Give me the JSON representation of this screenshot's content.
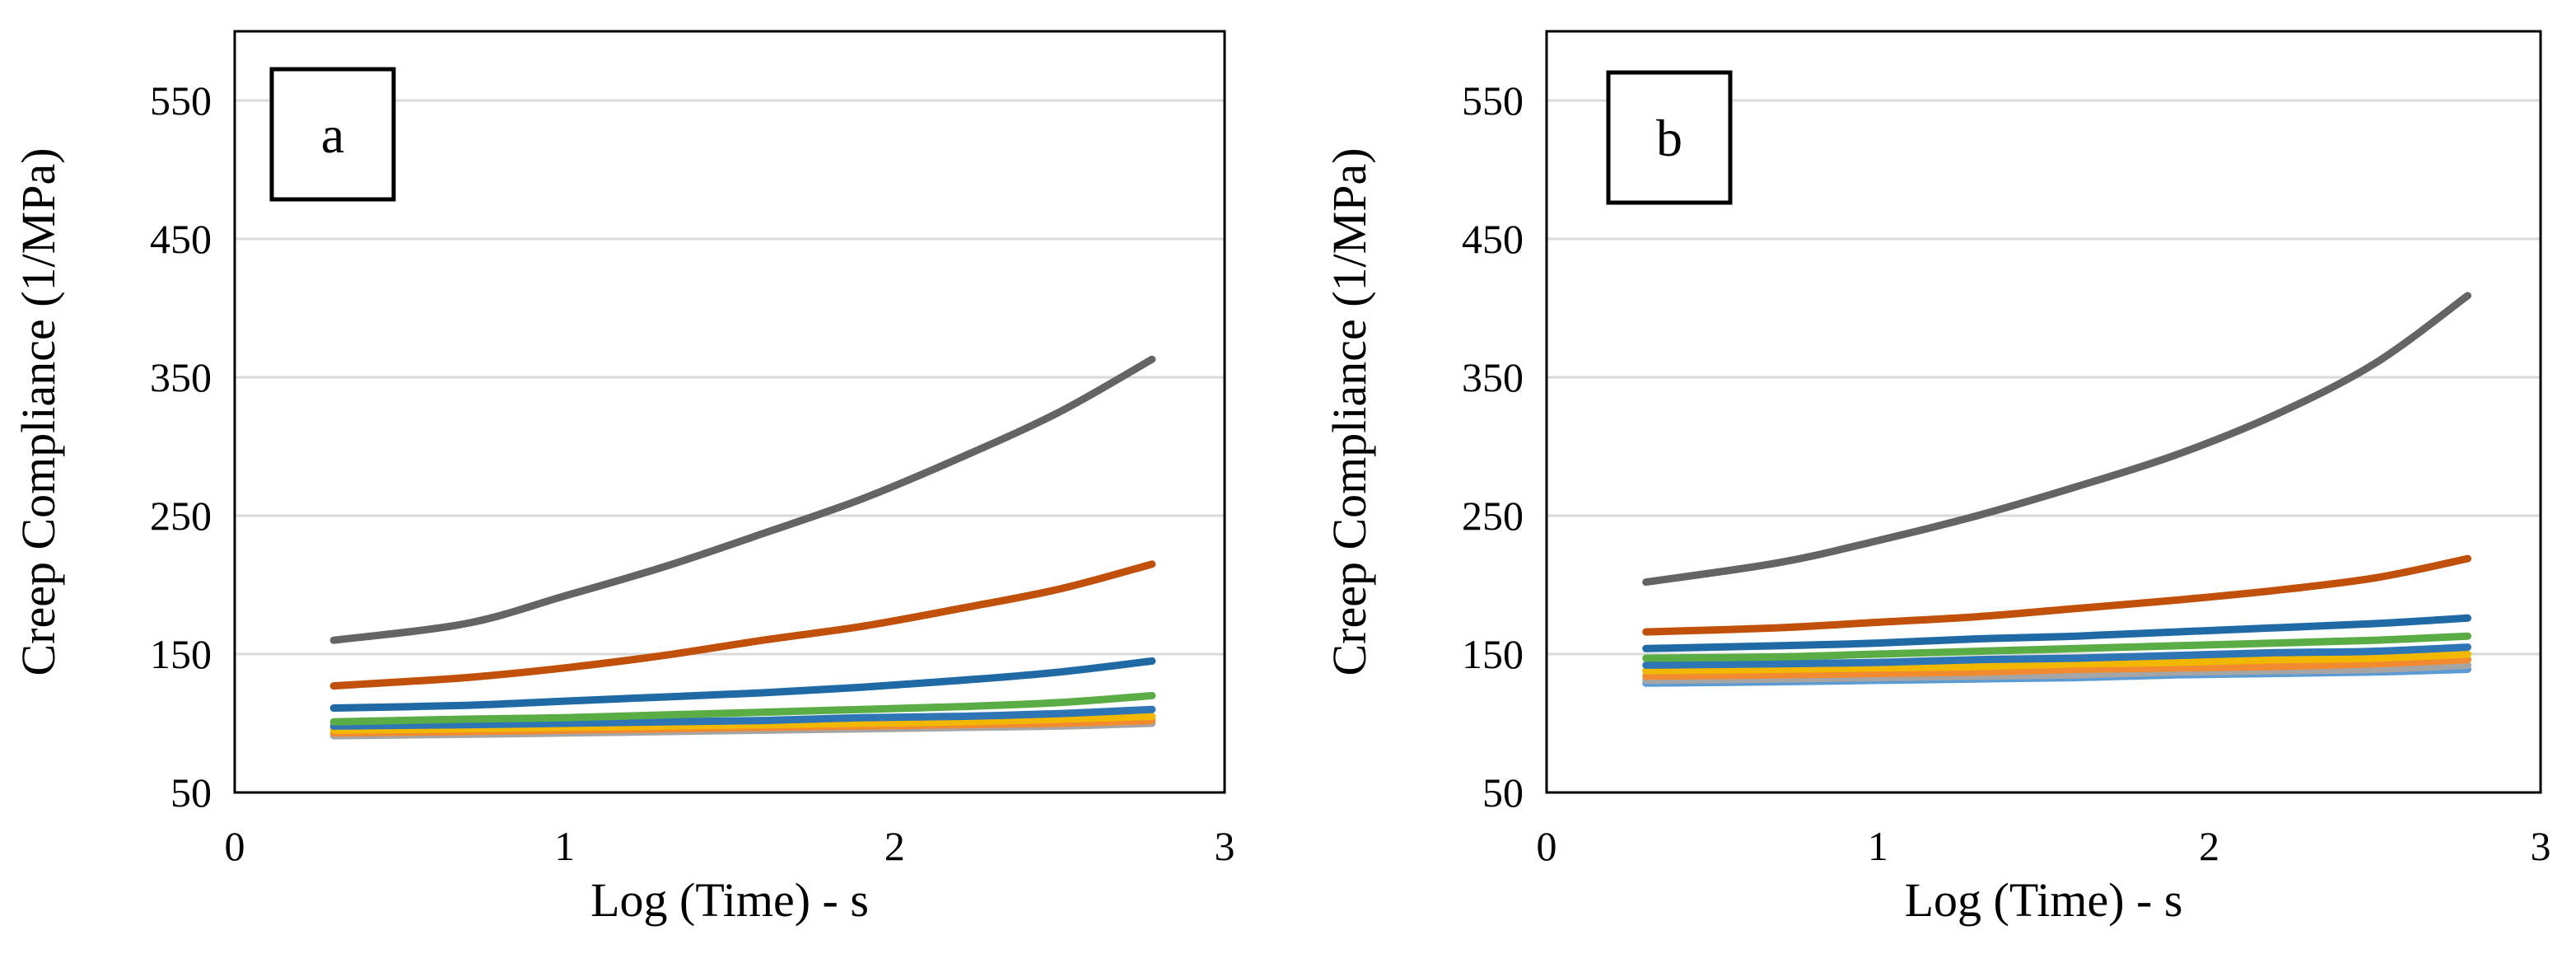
{
  "chart_data": [
    {
      "type": "line",
      "panel_label": "a",
      "xlabel": "Log (Time) - s",
      "ylabel": "Creep Compliance (1/MPa)",
      "xlim": [
        0,
        3
      ],
      "ylim": [
        50,
        600
      ],
      "x_ticks": [
        "0",
        "1",
        "2",
        "3"
      ],
      "y_ticks": [
        "50",
        "150",
        "250",
        "350",
        "450",
        "550"
      ],
      "grid": true,
      "legend": "none",
      "x": [
        0.3,
        0.7,
        1.0,
        1.3,
        1.6,
        1.9,
        2.2,
        2.5,
        2.78
      ],
      "series": [
        {
          "name": "grey",
          "color": "#646464",
          "values": [
            160,
            172,
            192,
            213,
            237,
            262,
            292,
            325,
            363
          ]
        },
        {
          "name": "orange",
          "color": "#c0500a",
          "values": [
            127,
            133,
            140,
            149,
            160,
            170,
            183,
            197,
            215
          ]
        },
        {
          "name": "dark-blue",
          "color": "#1f6aa5",
          "values": [
            111,
            113,
            116,
            119,
            122,
            126,
            131,
            137,
            145
          ]
        },
        {
          "name": "green",
          "color": "#5aac44",
          "values": [
            101,
            103,
            104,
            106,
            108,
            110,
            112,
            115,
            120
          ]
        },
        {
          "name": "blue",
          "color": "#2e75b6",
          "values": [
            98,
            99,
            100,
            101,
            102,
            104,
            105,
            107,
            110
          ]
        },
        {
          "name": "yellow",
          "color": "#f2b800",
          "values": [
            95,
            96,
            97,
            98,
            99,
            100,
            101,
            103,
            105
          ]
        },
        {
          "name": "light-orange",
          "color": "#f28a30",
          "values": [
            93,
            94,
            95,
            96,
            97,
            98,
            99,
            100,
            102
          ]
        },
        {
          "name": "light-grey",
          "color": "#a5a5a5",
          "values": [
            91,
            92,
            93,
            94,
            95,
            96,
            97,
            98,
            100
          ]
        }
      ]
    },
    {
      "type": "line",
      "panel_label": "b",
      "xlabel": "Log (Time) - s",
      "ylabel": "Creep Compliance (1/MPa)",
      "xlim": [
        0,
        3
      ],
      "ylim": [
        50,
        600
      ],
      "x_ticks": [
        "0",
        "1",
        "2",
        "3"
      ],
      "y_ticks": [
        "50",
        "150",
        "250",
        "350",
        "450",
        "550"
      ],
      "grid": true,
      "legend": "none",
      "x": [
        0.3,
        0.7,
        1.0,
        1.3,
        1.6,
        1.9,
        2.2,
        2.5,
        2.78
      ],
      "series": [
        {
          "name": "grey",
          "color": "#646464",
          "values": [
            202,
            216,
            232,
            250,
            271,
            294,
            323,
            360,
            409
          ]
        },
        {
          "name": "orange",
          "color": "#c0500a",
          "values": [
            166,
            169,
            173,
            177,
            183,
            189,
            196,
            205,
            219
          ]
        },
        {
          "name": "dark-blue",
          "color": "#1f6aa5",
          "values": [
            154,
            156,
            158,
            161,
            163,
            166,
            169,
            172,
            176
          ]
        },
        {
          "name": "green",
          "color": "#5aac44",
          "values": [
            147,
            148,
            150,
            152,
            154,
            156,
            158,
            160,
            163
          ]
        },
        {
          "name": "blue",
          "color": "#2e75b6",
          "values": [
            142,
            143,
            144,
            146,
            147,
            149,
            151,
            152,
            155
          ]
        },
        {
          "name": "yellow",
          "color": "#f2b800",
          "values": [
            138,
            139,
            140,
            141,
            143,
            144,
            146,
            147,
            150
          ]
        },
        {
          "name": "light-orange",
          "color": "#f28a30",
          "values": [
            134,
            135,
            136,
            137,
            139,
            140,
            141,
            143,
            146
          ]
        },
        {
          "name": "light-grey",
          "color": "#a5a5a5",
          "values": [
            131,
            132,
            133,
            134,
            135,
            137,
            138,
            139,
            142
          ]
        },
        {
          "name": "light-blue",
          "color": "#5b9bd5",
          "values": [
            129,
            130,
            131,
            132,
            133,
            135,
            136,
            137,
            139
          ]
        }
      ]
    }
  ]
}
